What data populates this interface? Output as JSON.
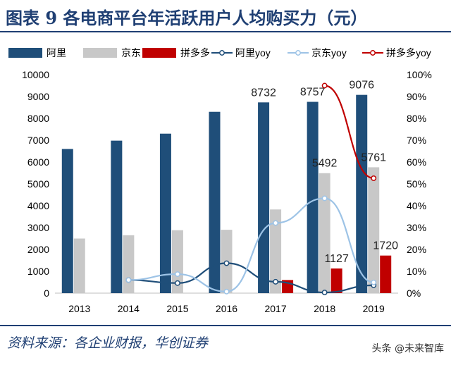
{
  "title": "图表 9   各电商平台年活跃用户人均购买力（元）",
  "source": "资料来源：各企业财报，华创证券",
  "watermark": "头条 @未来智库",
  "colors": {
    "ali": "#1f4e79",
    "jd": "#c8c8c8",
    "pdd": "#c00000",
    "ali_yoy": "#1f4e79",
    "jd_yoy": "#9dc3e6",
    "pdd_yoy": "#c00000"
  },
  "chart_data": {
    "type": "bar",
    "categories": [
      "2013",
      "2014",
      "2015",
      "2016",
      "2017",
      "2018",
      "2019"
    ],
    "series": [
      {
        "name": "阿里",
        "type": "bar",
        "axis": "left",
        "values": [
          6600,
          6980,
          7300,
          8300,
          8732,
          8757,
          9076
        ]
      },
      {
        "name": "京东",
        "type": "bar",
        "axis": "left",
        "values": [
          2500,
          2650,
          2880,
          2900,
          3830,
          5492,
          5761
        ]
      },
      {
        "name": "拼多多",
        "type": "bar",
        "axis": "left",
        "values": [
          null,
          null,
          null,
          null,
          600,
          1127,
          1720
        ]
      },
      {
        "name": "阿里yoy",
        "type": "line",
        "axis": "right",
        "values": [
          null,
          6,
          4.6,
          13.7,
          5.2,
          0.3,
          3.6
        ]
      },
      {
        "name": "京东yoy",
        "type": "line",
        "axis": "right",
        "values": [
          null,
          6,
          8.7,
          0.7,
          32.1,
          43.4,
          4.9
        ]
      },
      {
        "name": "拼多多yoy",
        "type": "line",
        "axis": "right",
        "values": [
          null,
          null,
          null,
          null,
          null,
          95,
          52.6
        ]
      }
    ],
    "data_labels": [
      {
        "series": "阿里",
        "category": "2017",
        "text": "8732"
      },
      {
        "series": "阿里",
        "category": "2018",
        "text": "8757"
      },
      {
        "series": "阿里",
        "category": "2019",
        "text": "9076"
      },
      {
        "series": "京东",
        "category": "2018",
        "text": "5492"
      },
      {
        "series": "京东",
        "category": "2019",
        "text": "5761"
      },
      {
        "series": "拼多多",
        "category": "2018",
        "text": "1127"
      },
      {
        "series": "拼多多",
        "category": "2019",
        "text": "1720"
      }
    ],
    "ylim": [
      0,
      10000
    ],
    "yticks": [
      "0",
      "1000",
      "2000",
      "3000",
      "4000",
      "5000",
      "6000",
      "7000",
      "8000",
      "9000",
      "10000"
    ],
    "y2lim": [
      0,
      100
    ],
    "y2ticks": [
      "0%",
      "10%",
      "20%",
      "30%",
      "40%",
      "50%",
      "60%",
      "70%",
      "80%",
      "90%",
      "100%"
    ],
    "legend_position": "top",
    "grid": false
  }
}
